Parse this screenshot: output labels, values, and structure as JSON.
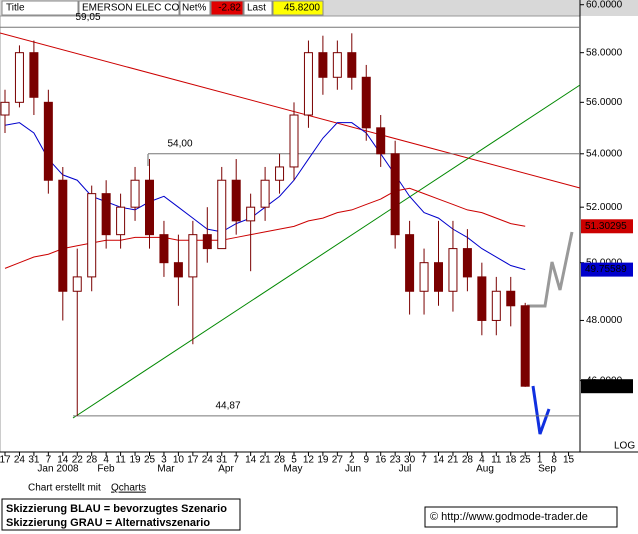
{
  "header": {
    "title_label": "Title",
    "symbol": "EMERSON ELEC CO",
    "net_label": "Net%",
    "net": -2.82,
    "last_label": "Last",
    "last": "45.8200"
  },
  "chart_data": {
    "type": "candlestick",
    "log_scale": true,
    "categories": [
      "17",
      "24",
      "31",
      "7",
      "14",
      "22",
      "28",
      "4",
      "11",
      "19",
      "25",
      "3",
      "10",
      "17",
      "24",
      "31",
      "7",
      "14",
      "21",
      "28",
      "5",
      "12",
      "19",
      "27",
      "2",
      "9",
      "16",
      "23",
      "30",
      "7",
      "14",
      "21",
      "28",
      "4",
      "11",
      "18",
      "25",
      "1",
      "8",
      "15"
    ],
    "months": [
      "Jan 2008",
      "Feb",
      "Mar",
      "Apr",
      "May",
      "Jun",
      "Jul",
      "Aug",
      "Sep"
    ],
    "open": [
      55.5,
      56,
      58,
      56,
      53,
      49,
      49.5,
      52.5,
      51,
      52,
      53,
      51,
      50,
      49.5,
      51,
      50.5,
      53,
      51.5,
      52,
      53,
      53.5,
      55.5,
      58,
      57,
      58,
      57,
      55,
      54,
      51,
      49,
      50,
      49,
      50.5,
      49.5,
      48,
      49,
      48.5,
      null,
      null,
      null
    ],
    "high": [
      56.5,
      58.3,
      58.5,
      56.5,
      53.5,
      50.5,
      52.8,
      53,
      52.5,
      53.5,
      53.8,
      51.5,
      51,
      51.5,
      52,
      53.5,
      53.8,
      52.5,
      53.5,
      54,
      56,
      58.5,
      58.7,
      58.5,
      58.8,
      57.5,
      55.5,
      54.5,
      51.5,
      50.5,
      51.5,
      51.5,
      51.2,
      50,
      49.5,
      49.5,
      48.6,
      null,
      null,
      null
    ],
    "low": [
      54.8,
      55.8,
      55.5,
      52.5,
      48,
      44.87,
      49,
      50.5,
      50.5,
      51.5,
      50.5,
      49.5,
      48.5,
      47.2,
      50,
      50.5,
      51,
      49.7,
      51.5,
      52.5,
      53,
      55,
      56.3,
      56.5,
      56.5,
      54.5,
      53.5,
      50.5,
      48.2,
      48.2,
      48.5,
      48.3,
      49,
      47.5,
      47.5,
      47.8,
      45.8,
      null,
      null,
      null
    ],
    "close": [
      56,
      58,
      56.2,
      53,
      49,
      49.5,
      52.5,
      51,
      52,
      53,
      51,
      50,
      49.5,
      51,
      50.5,
      53,
      51.5,
      52,
      53,
      53.5,
      55.5,
      58,
      57,
      58,
      57,
      55,
      54,
      51,
      49,
      50,
      49,
      50.5,
      49.5,
      48,
      49,
      48.5,
      45.82,
      null,
      null,
      null
    ],
    "close_label": "45.8200",
    "up_color": "#ffffff",
    "down_color": "#7a0000",
    "series": [
      {
        "color": "#0000cc",
        "values": [
          55.1,
          55.2,
          54.8,
          53.8,
          53.2,
          53,
          52.4,
          52.2,
          52,
          51.9,
          52.2,
          52.4,
          52,
          51.6,
          51.2,
          51.1,
          51.4,
          51.6,
          52,
          52.4,
          53,
          53.8,
          54.6,
          55.2,
          55.2,
          54.8,
          54,
          53.2,
          52.4,
          51.8,
          51.6,
          51.2,
          50.9,
          50.5,
          50.2,
          49.9,
          49.75589,
          null,
          null,
          null
        ]
      },
      {
        "color": "#cc0000",
        "values": [
          49.8,
          50,
          50.2,
          50.3,
          50.5,
          50.6,
          50.7,
          50.8,
          50.8,
          50.9,
          50.9,
          50.9,
          50.8,
          50.8,
          50.8,
          50.8,
          50.9,
          51,
          51.1,
          51.2,
          51.3,
          51.5,
          51.6,
          51.8,
          51.9,
          52.1,
          52.3,
          52.6,
          52.7,
          52.5,
          52.3,
          52.1,
          51.9,
          51.8,
          51.6,
          51.4,
          51.30295,
          null,
          null,
          null
        ]
      }
    ],
    "levels": [
      {
        "value": 59.05,
        "label": "59,05"
      },
      {
        "value": 54,
        "label": "54,00"
      },
      {
        "value": 44.87,
        "label": "44,87"
      }
    ],
    "ylim": [
      43.8,
      60.2
    ],
    "yticks": [
      {
        "value": 46,
        "label": "46.0000"
      },
      {
        "value": 48,
        "label": "48.0000"
      },
      {
        "value": 50,
        "label": "50.0000"
      },
      {
        "value": 52,
        "label": "52.0000"
      },
      {
        "value": 54,
        "label": "54.0000"
      },
      {
        "value": 56,
        "label": "56.0000"
      },
      {
        "value": 58,
        "label": "58.0000"
      },
      {
        "value": 60,
        "label": "60.0000"
      }
    ],
    "scale_label": "LOG"
  },
  "footer": {
    "credit_prefix": "Chart erstellt mit",
    "credit_link": "Qcharts",
    "legend": [
      "Skizzierung BLAU = bevorzugtes Szenario",
      "Skizzierung GRAU = Alternativszenario"
    ],
    "copyright": "© http://www.godmode-trader.de"
  }
}
